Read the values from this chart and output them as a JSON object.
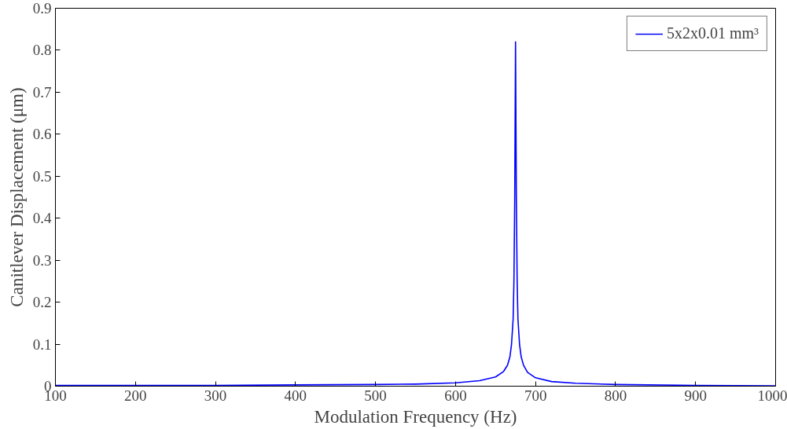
{
  "chart_data": {
    "type": "line",
    "xlabel": "Modulation Frequency (Hz)",
    "ylabel": "Canitlever Displacement (μm)",
    "xlim": [
      100,
      1000
    ],
    "xticks": [
      100,
      200,
      300,
      400,
      500,
      600,
      700,
      800,
      900,
      1000
    ],
    "ylim": [
      0,
      0.9
    ],
    "yticks": [
      0,
      0.1,
      0.2,
      0.3,
      0.4,
      0.5,
      0.6,
      0.7,
      0.8,
      0.9
    ],
    "legend": "top right",
    "grid": false,
    "series": [
      {
        "name": "5x2x0.01 mm³",
        "color": "#0000ff",
        "x": [
          100,
          200,
          300,
          400,
          500,
          550,
          600,
          630,
          650,
          660,
          665,
          668,
          670,
          672,
          673,
          674,
          675,
          676,
          677,
          678,
          680,
          682,
          685,
          690,
          700,
          720,
          750,
          800,
          900,
          1000
        ],
        "values": [
          0.002,
          0.002,
          0.002,
          0.003,
          0.004,
          0.005,
          0.008,
          0.013,
          0.022,
          0.035,
          0.05,
          0.07,
          0.1,
          0.16,
          0.25,
          0.45,
          0.82,
          0.45,
          0.25,
          0.16,
          0.1,
          0.07,
          0.05,
          0.033,
          0.02,
          0.011,
          0.007,
          0.004,
          0.002,
          0.001
        ]
      }
    ]
  }
}
